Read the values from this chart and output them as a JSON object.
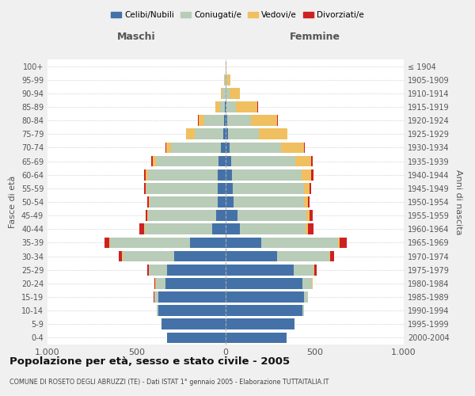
{
  "age_groups": [
    "0-4",
    "5-9",
    "10-14",
    "15-19",
    "20-24",
    "25-29",
    "30-34",
    "35-39",
    "40-44",
    "45-49",
    "50-54",
    "55-59",
    "60-64",
    "65-69",
    "70-74",
    "75-79",
    "80-84",
    "85-89",
    "90-94",
    "95-99",
    "100+"
  ],
  "birth_years": [
    "2000-2004",
    "1995-1999",
    "1990-1994",
    "1985-1989",
    "1980-1984",
    "1975-1979",
    "1970-1974",
    "1965-1969",
    "1960-1964",
    "1955-1959",
    "1950-1954",
    "1945-1949",
    "1940-1944",
    "1935-1939",
    "1930-1934",
    "1925-1929",
    "1920-1924",
    "1915-1919",
    "1910-1914",
    "1905-1909",
    "≤ 1904"
  ],
  "maschi": {
    "celibi": [
      330,
      360,
      380,
      380,
      340,
      330,
      290,
      200,
      75,
      55,
      45,
      45,
      45,
      40,
      25,
      12,
      8,
      3,
      2,
      0,
      0
    ],
    "coniugati": [
      0,
      2,
      5,
      20,
      50,
      100,
      290,
      450,
      380,
      380,
      380,
      400,
      390,
      350,
      280,
      160,
      110,
      30,
      15,
      5,
      2
    ],
    "vedovi": [
      0,
      0,
      0,
      2,
      5,
      2,
      2,
      3,
      3,
      4,
      5,
      5,
      12,
      20,
      30,
      50,
      35,
      25,
      10,
      2,
      0
    ],
    "divorziati": [
      0,
      0,
      0,
      2,
      3,
      10,
      20,
      25,
      25,
      10,
      8,
      8,
      10,
      10,
      5,
      2,
      2,
      0,
      0,
      0,
      0
    ]
  },
  "femmine": {
    "nubili": [
      340,
      385,
      430,
      440,
      430,
      380,
      290,
      200,
      80,
      65,
      45,
      40,
      35,
      30,
      20,
      15,
      10,
      4,
      2,
      0,
      0
    ],
    "coniugate": [
      0,
      2,
      8,
      20,
      55,
      115,
      290,
      430,
      370,
      390,
      395,
      400,
      390,
      360,
      290,
      170,
      130,
      55,
      20,
      8,
      2
    ],
    "vedove": [
      0,
      0,
      0,
      2,
      2,
      3,
      5,
      8,
      10,
      15,
      20,
      30,
      55,
      90,
      130,
      160,
      150,
      120,
      60,
      20,
      2
    ],
    "divorziate": [
      0,
      0,
      0,
      2,
      4,
      12,
      25,
      40,
      35,
      18,
      12,
      12,
      12,
      10,
      5,
      2,
      2,
      2,
      0,
      0,
      0
    ]
  },
  "colors": {
    "celibi_nubili": "#4472a8",
    "coniugati": "#b8ccb8",
    "vedovi": "#f0c060",
    "divorziati": "#cc2222"
  },
  "xlim": 1000,
  "title": "Popolazione per età, sesso e stato civile - 2005",
  "subtitle": "COMUNE DI ROSETO DEGLI ABRUZZI (TE) - Dati ISTAT 1° gennaio 2005 - Elaborazione TUTTAITALIA.IT",
  "xlabel_left": "Maschi",
  "xlabel_right": "Femmine",
  "ylabel_left": "Fasce di età",
  "ylabel_right": "Anni di nascita",
  "legend_labels": [
    "Celibi/Nubili",
    "Coniugati/e",
    "Vedovi/e",
    "Divorziati/e"
  ],
  "bg_color": "#f0f0f0",
  "plot_bg": "#ffffff"
}
